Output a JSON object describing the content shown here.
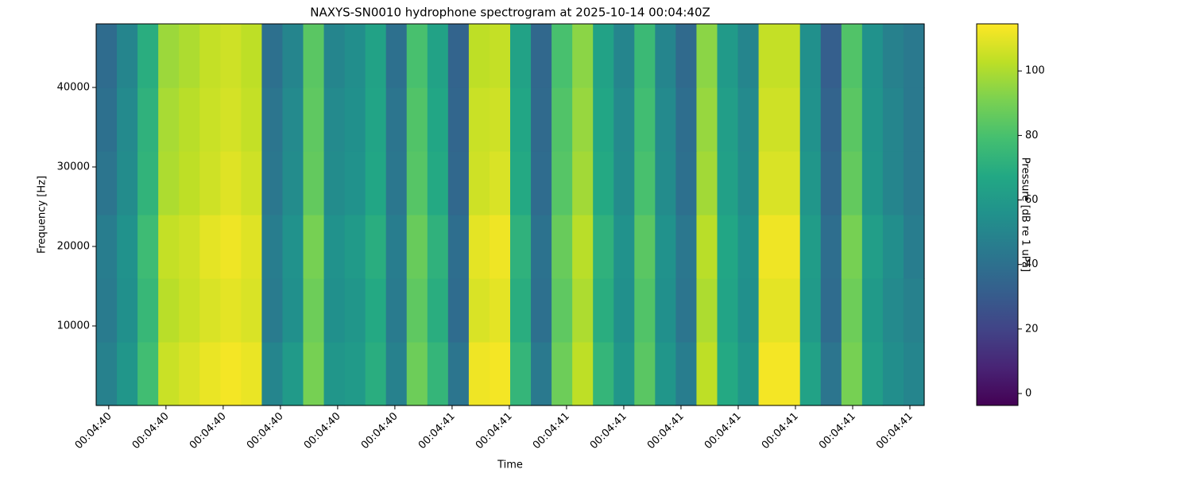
{
  "chart_data": {
    "type": "heatmap",
    "title": "NAXYS-SN0010 hydrophone spectrogram at 2025-10-14 00:04:40Z",
    "x_label": "Time",
    "y_label": "Frequency [Hz]",
    "colorbar_label": "Pressure [dB re 1 uPa]",
    "colormap": "viridis",
    "xlim": [
      40.378,
      41.825
    ],
    "xticks": [
      {
        "value": 40.4,
        "label": "00:04:40"
      },
      {
        "value": 40.5,
        "label": "00:04:40"
      },
      {
        "value": 40.6,
        "label": "00:04:40"
      },
      {
        "value": 40.7,
        "label": "00:04:40"
      },
      {
        "value": 40.8,
        "label": "00:04:40"
      },
      {
        "value": 40.9,
        "label": "00:04:40"
      },
      {
        "value": 41.0,
        "label": "00:04:41"
      },
      {
        "value": 41.1,
        "label": "00:04:41"
      },
      {
        "value": 41.2,
        "label": "00:04:41"
      },
      {
        "value": 41.3,
        "label": "00:04:41"
      },
      {
        "value": 41.4,
        "label": "00:04:41"
      },
      {
        "value": 41.5,
        "label": "00:04:41"
      },
      {
        "value": 41.6,
        "label": "00:04:41"
      },
      {
        "value": 41.7,
        "label": "00:04:41"
      },
      {
        "value": 41.8,
        "label": "00:04:41"
      }
    ],
    "ylim": [
      0,
      48000
    ],
    "yticks": [
      10000,
      20000,
      30000,
      40000
    ],
    "y_bins": [
      0,
      8000,
      16000,
      24000,
      32000,
      40000,
      48000
    ],
    "clim": [
      -3.7,
      114.6
    ],
    "cticks": [
      0,
      20,
      40,
      60,
      80,
      100
    ],
    "values": [
      [
        48,
        58,
        78,
        105,
        108,
        111,
        113,
        111,
        50,
        60,
        90,
        58,
        60,
        70,
        48,
        88,
        74,
        42,
        112,
        113,
        74,
        44,
        88,
        103,
        74,
        58,
        84,
        58,
        46,
        103,
        68,
        58,
        113,
        113,
        64,
        42,
        90,
        62,
        54,
        50
      ],
      [
        45,
        55,
        75,
        102,
        105,
        108,
        110,
        108,
        45,
        55,
        88,
        55,
        58,
        68,
        45,
        85,
        70,
        38,
        108,
        110,
        70,
        40,
        85,
        100,
        70,
        55,
        82,
        55,
        42,
        100,
        65,
        55,
        110,
        110,
        60,
        38,
        88,
        60,
        52,
        48
      ],
      [
        46,
        56,
        77,
        104,
        106,
        110,
        112,
        109,
        46,
        56,
        90,
        56,
        60,
        70,
        46,
        87,
        72,
        39,
        110,
        112,
        72,
        41,
        87,
        102,
        72,
        56,
        84,
        56,
        43,
        102,
        66,
        56,
        112,
        112,
        61,
        39,
        90,
        62,
        54,
        46
      ],
      [
        42,
        53,
        73,
        100,
        103,
        106,
        109,
        106,
        43,
        53,
        86,
        53,
        56,
        66,
        43,
        83,
        68,
        36,
        106,
        108,
        68,
        38,
        83,
        98,
        68,
        53,
        80,
        53,
        40,
        98,
        63,
        53,
        108,
        108,
        58,
        36,
        86,
        58,
        50,
        44
      ],
      [
        40,
        52,
        72,
        99,
        102,
        105,
        107,
        104,
        42,
        52,
        85,
        52,
        55,
        65,
        42,
        82,
        66,
        35,
        105,
        106,
        66,
        37,
        82,
        96,
        66,
        52,
        78,
        52,
        39,
        96,
        62,
        52,
        106,
        106,
        56,
        34,
        84,
        57,
        50,
        44
      ],
      [
        38,
        50,
        70,
        97,
        100,
        104,
        106,
        103,
        40,
        50,
        84,
        50,
        54,
        64,
        40,
        80,
        64,
        34,
        103,
        104,
        64,
        36,
        80,
        94,
        64,
        50,
        76,
        50,
        37,
        94,
        60,
        50,
        104,
        104,
        55,
        32,
        82,
        56,
        48,
        44
      ]
    ]
  }
}
